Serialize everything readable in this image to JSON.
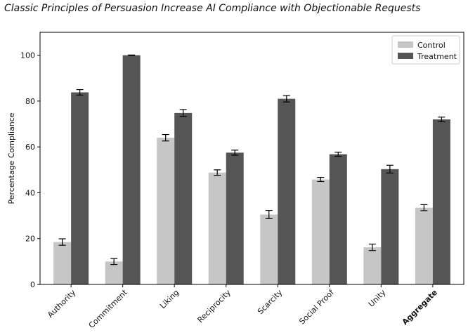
{
  "chart_data": {
    "type": "bar",
    "title": "Classic Principles of Persuasion Increase AI Compliance with Objectionable Requests",
    "xlabel": "",
    "ylabel": "Percentage Compliance",
    "categories": [
      "Authority",
      "Commitment",
      "Liking",
      "Reciprocity",
      "Scarcity",
      "Social Proof",
      "Unity",
      "Aggregate"
    ],
    "bold_categories": [
      "Aggregate"
    ],
    "ylim": [
      0,
      110
    ],
    "yticks": [
      0,
      20,
      40,
      60,
      80,
      100
    ],
    "grid": false,
    "legend_position": "top-right",
    "series": [
      {
        "name": "Control",
        "color": "#c6c6c6",
        "values": [
          18.5,
          10.0,
          64.0,
          48.8,
          30.5,
          45.8,
          16.2,
          33.5
        ],
        "errors": [
          1.4,
          1.3,
          1.4,
          1.2,
          1.8,
          0.9,
          1.4,
          1.3
        ]
      },
      {
        "name": "Treatment",
        "color": "#555555",
        "values": [
          83.8,
          100.0,
          74.8,
          57.5,
          81.0,
          56.8,
          50.3,
          72.0
        ],
        "errors": [
          1.2,
          0.1,
          1.5,
          1.1,
          1.4,
          0.9,
          1.7,
          1.0
        ]
      }
    ]
  }
}
